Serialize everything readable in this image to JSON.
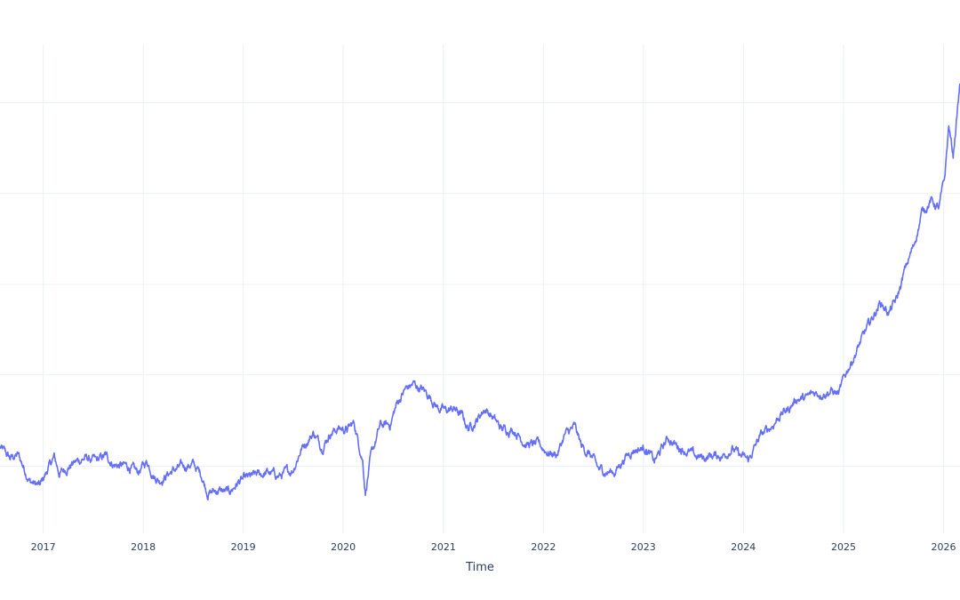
{
  "chart_data": {
    "type": "line",
    "title": "",
    "xlabel": "Time",
    "ylabel": "",
    "grid": true,
    "legend": "none",
    "xlim": [
      "2016-07-27",
      "2026-03-02"
    ],
    "ylim": [
      0,
      1
    ],
    "x_ticks": [
      "2017",
      "2018",
      "2019",
      "2020",
      "2021",
      "2022",
      "2023",
      "2024",
      "2025",
      "2026"
    ],
    "y_gridlines": [
      0.137,
      0.324,
      0.509,
      0.695,
      0.881
    ],
    "series": [
      {
        "line_color": "#636efa",
        "noise": 0.012,
        "points": [
          [
            "2016-07-27",
            0.176
          ],
          [
            "2016-09-01",
            0.153
          ],
          [
            "2016-10-01",
            0.16
          ],
          [
            "2016-11-15",
            0.106
          ],
          [
            "2016-12-20",
            0.096
          ],
          [
            "2017-01-20",
            0.134
          ],
          [
            "2017-02-10",
            0.155
          ],
          [
            "2017-03-01",
            0.122
          ],
          [
            "2017-04-15",
            0.142
          ],
          [
            "2017-06-01",
            0.154
          ],
          [
            "2017-07-15",
            0.147
          ],
          [
            "2017-08-15",
            0.158
          ],
          [
            "2017-09-20",
            0.14
          ],
          [
            "2017-11-10",
            0.136
          ],
          [
            "2017-12-10",
            0.123
          ],
          [
            "2018-01-15",
            0.147
          ],
          [
            "2018-02-10",
            0.118
          ],
          [
            "2018-03-01",
            0.109
          ],
          [
            "2018-04-15",
            0.127
          ],
          [
            "2018-05-15",
            0.134
          ],
          [
            "2018-06-30",
            0.142
          ],
          [
            "2018-08-01",
            0.12
          ],
          [
            "2018-08-25",
            0.083
          ],
          [
            "2018-10-01",
            0.088
          ],
          [
            "2018-11-10",
            0.083
          ],
          [
            "2018-12-15",
            0.105
          ],
          [
            "2019-02-15",
            0.118
          ],
          [
            "2019-04-01",
            0.124
          ],
          [
            "2019-05-15",
            0.117
          ],
          [
            "2019-07-01",
            0.13
          ],
          [
            "2019-08-01",
            0.174
          ],
          [
            "2019-09-15",
            0.206
          ],
          [
            "2019-10-15",
            0.177
          ],
          [
            "2019-11-15",
            0.206
          ],
          [
            "2019-12-15",
            0.215
          ],
          [
            "2020-01-15",
            0.212
          ],
          [
            "2020-02-10",
            0.225
          ],
          [
            "2020-02-28",
            0.181
          ],
          [
            "2020-03-12",
            0.152
          ],
          [
            "2020-03-22",
            0.085
          ],
          [
            "2020-04-10",
            0.152
          ],
          [
            "2020-05-15",
            0.22
          ],
          [
            "2020-06-20",
            0.222
          ],
          [
            "2020-07-15",
            0.265
          ],
          [
            "2020-08-15",
            0.295
          ],
          [
            "2020-09-15",
            0.305
          ],
          [
            "2020-10-20",
            0.292
          ],
          [
            "2020-11-15",
            0.279
          ],
          [
            "2020-12-10",
            0.258
          ],
          [
            "2021-01-10",
            0.25
          ],
          [
            "2021-02-10",
            0.255
          ],
          [
            "2021-03-10",
            0.24
          ],
          [
            "2021-04-01",
            0.215
          ],
          [
            "2021-05-01",
            0.231
          ],
          [
            "2021-06-01",
            0.256
          ],
          [
            "2021-07-01",
            0.237
          ],
          [
            "2021-08-01",
            0.213
          ],
          [
            "2021-09-15",
            0.213
          ],
          [
            "2021-11-01",
            0.182
          ],
          [
            "2021-12-15",
            0.181
          ],
          [
            "2022-01-20",
            0.165
          ],
          [
            "2022-02-20",
            0.162
          ],
          [
            "2022-03-20",
            0.201
          ],
          [
            "2022-04-25",
            0.217
          ],
          [
            "2022-05-20",
            0.178
          ],
          [
            "2022-06-25",
            0.158
          ],
          [
            "2022-07-20",
            0.131
          ],
          [
            "2022-08-20",
            0.126
          ],
          [
            "2022-09-20",
            0.126
          ],
          [
            "2022-10-20",
            0.152
          ],
          [
            "2022-11-25",
            0.172
          ],
          [
            "2023-01-10",
            0.175
          ],
          [
            "2023-02-10",
            0.146
          ],
          [
            "2023-04-01",
            0.195
          ],
          [
            "2023-05-01",
            0.18
          ],
          [
            "2023-06-01",
            0.171
          ],
          [
            "2023-07-10",
            0.157
          ],
          [
            "2023-08-10",
            0.154
          ],
          [
            "2023-09-01",
            0.159
          ],
          [
            "2023-10-20",
            0.159
          ],
          [
            "2023-11-20",
            0.175
          ],
          [
            "2023-12-20",
            0.158
          ],
          [
            "2024-01-20",
            0.149
          ],
          [
            "2024-03-01",
            0.197
          ],
          [
            "2024-04-15",
            0.22
          ],
          [
            "2024-05-15",
            0.243
          ],
          [
            "2024-06-15",
            0.255
          ],
          [
            "2024-07-15",
            0.277
          ],
          [
            "2024-08-15",
            0.275
          ],
          [
            "2024-09-15",
            0.287
          ],
          [
            "2024-10-15",
            0.288
          ],
          [
            "2024-11-15",
            0.291
          ],
          [
            "2024-12-15",
            0.285
          ],
          [
            "2025-01-15",
            0.335
          ],
          [
            "2025-02-15",
            0.37
          ],
          [
            "2025-03-15",
            0.404
          ],
          [
            "2025-04-15",
            0.439
          ],
          [
            "2025-05-15",
            0.473
          ],
          [
            "2025-06-15",
            0.451
          ],
          [
            "2025-07-15",
            0.479
          ],
          [
            "2025-08-15",
            0.542
          ],
          [
            "2025-09-15",
            0.59
          ],
          [
            "2025-10-15",
            0.658
          ],
          [
            "2025-11-15",
            0.681
          ],
          [
            "2025-12-15",
            0.664
          ],
          [
            "2026-01-05",
            0.725
          ],
          [
            "2026-01-20",
            0.833
          ],
          [
            "2026-02-05",
            0.772
          ],
          [
            "2026-02-20",
            0.862
          ],
          [
            "2026-03-02",
            0.92
          ]
        ]
      }
    ]
  }
}
